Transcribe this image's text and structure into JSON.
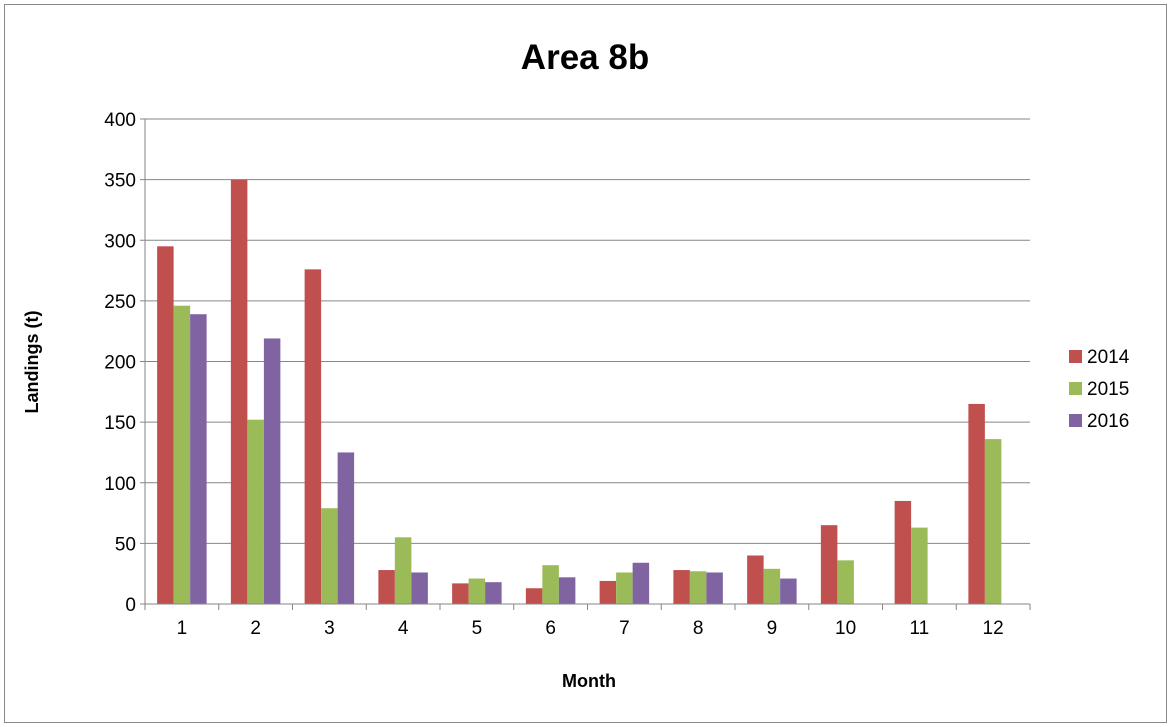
{
  "chart_data": {
    "type": "bar",
    "title": "Area 8b",
    "xlabel": "Month",
    "ylabel": "Landings (t)",
    "ylim": [
      0,
      400
    ],
    "yticks": [
      0,
      50,
      100,
      150,
      200,
      250,
      300,
      350,
      400
    ],
    "grid": true,
    "legend": "right",
    "categories": [
      "1",
      "2",
      "3",
      "4",
      "5",
      "6",
      "7",
      "8",
      "9",
      "10",
      "11",
      "12"
    ],
    "series": [
      {
        "name": "2014",
        "color": "#c0504d",
        "values": [
          295,
          350,
          276,
          28,
          17,
          13,
          19,
          28,
          40,
          65,
          85,
          165
        ]
      },
      {
        "name": "2015",
        "color": "#9bbb59",
        "values": [
          246,
          152,
          79,
          55,
          21,
          32,
          26,
          27,
          29,
          36,
          63,
          136
        ]
      },
      {
        "name": "2016",
        "color": "#8064a2",
        "values": [
          239,
          219,
          125,
          26,
          18,
          22,
          34,
          26,
          21,
          null,
          null,
          null
        ]
      }
    ]
  }
}
